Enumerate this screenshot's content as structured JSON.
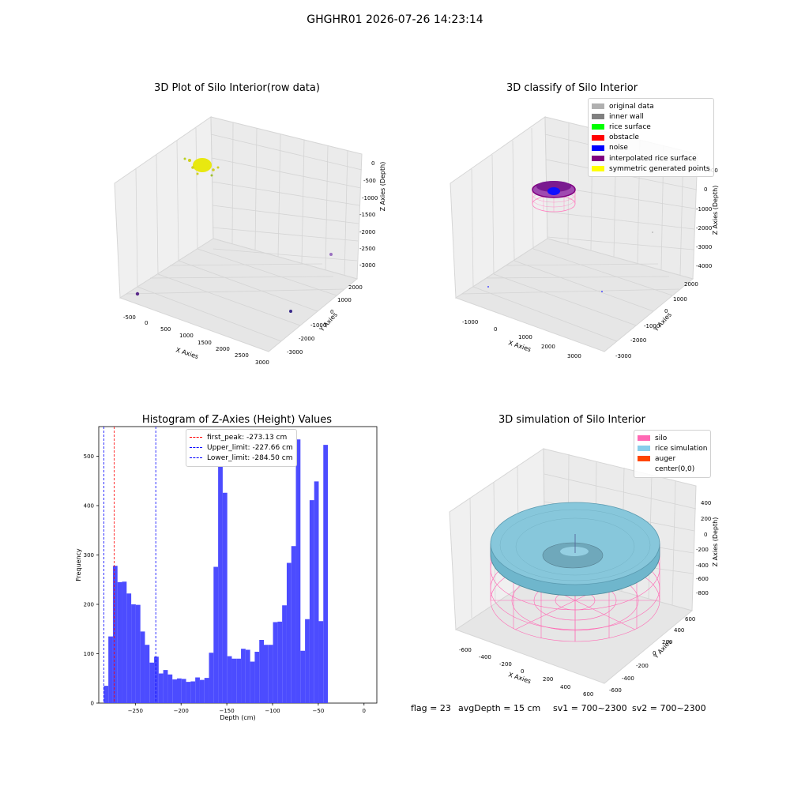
{
  "suptitle": "GHGHR01 2026-07-26 14:23:14",
  "panels": {
    "raw": {
      "title": "3D Plot of Silo Interior(row data)",
      "xlabel": "X Axies",
      "ylabel": "Y Axies",
      "zlabel": "Z Axies (Depth)",
      "xticks": [
        "-500",
        "0",
        "500",
        "1000",
        "1500",
        "2000",
        "2500",
        "3000"
      ],
      "yticks": [
        "2000",
        "1000",
        "0",
        "-1000",
        "-2000",
        "-3000"
      ],
      "zticks": [
        "0",
        "-500",
        "-1000",
        "-1500",
        "-2000",
        "-2500",
        "-3000"
      ]
    },
    "classify": {
      "title": "3D classify of Silo Interior",
      "xlabel": "X Axies",
      "ylabel": "Y Axies",
      "zlabel": "Z Axies (Depth)",
      "xticks": [
        "-1000",
        "0",
        "1000",
        "2000",
        "3000"
      ],
      "yticks": [
        "2000",
        "1000",
        "0",
        "-1000",
        "-2000",
        "-3000"
      ],
      "zticks": [
        "1000",
        "0",
        "-1000",
        "-2000",
        "-3000",
        "-4000"
      ],
      "legend": [
        {
          "label": "original data",
          "color": "#b0b0b0"
        },
        {
          "label": "inner wall",
          "color": "#808080"
        },
        {
          "label": "rice surface",
          "color": "#00ff00"
        },
        {
          "label": "obstacle",
          "color": "#ff0000"
        },
        {
          "label": "noise",
          "color": "#0000ff"
        },
        {
          "label": "interpolated rice surface",
          "color": "#800080"
        },
        {
          "label": "symmetric generated points",
          "color": "#ffff00"
        }
      ]
    },
    "simulation": {
      "title": "3D simulation of Silo Interior",
      "xlabel": "X Axies",
      "ylabel": "Y Axies",
      "zlabel": "Z Axies (Depth)",
      "xticks": [
        "-600",
        "-400",
        "-200",
        "0",
        "200",
        "400",
        "600"
      ],
      "yticks": [
        "600",
        "400",
        "200",
        "0",
        "-200",
        "-400",
        "-600"
      ],
      "zticks": [
        "400",
        "200",
        "0",
        "-200",
        "-400",
        "-600",
        "-800"
      ],
      "legend": [
        {
          "label": "silo",
          "color": "#ff69b4"
        },
        {
          "label": "rice simulation",
          "color": "#87ceeb"
        },
        {
          "label": "auger",
          "color": "#ff4500"
        },
        {
          "label": "center(0,0)",
          "color": ""
        }
      ]
    }
  },
  "chart_data": [
    {
      "type": "bar",
      "title": "Histogram of Z-Axies (Height) Values",
      "xlabel": "Depth (cm)",
      "ylabel": "Frequency",
      "xlim": [
        -290,
        14
      ],
      "ylim": [
        0,
        560
      ],
      "xticks": [
        -250,
        -200,
        -150,
        -100,
        -50,
        0
      ],
      "yticks": [
        0,
        100,
        200,
        300,
        400,
        500
      ],
      "bin_start": -284.5,
      "bin_width": 5.0,
      "color": "#4c4cff",
      "values": [
        35,
        135,
        278,
        245,
        246,
        222,
        200,
        199,
        145,
        118,
        82,
        94,
        60,
        67,
        58,
        48,
        50,
        49,
        43,
        44,
        52,
        47,
        51,
        102,
        276,
        480,
        426,
        95,
        90,
        90,
        110,
        108,
        84,
        104,
        128,
        118,
        118,
        164,
        165,
        198,
        284,
        318,
        534,
        106,
        170,
        411,
        449,
        166,
        523
      ],
      "vlines": [
        {
          "x": -273.13,
          "color": "#ff0000",
          "label": "first_peak: -273.13 cm"
        },
        {
          "x": -227.66,
          "color": "#0000ff",
          "label": "Upper_limit: -227.66 cm"
        },
        {
          "x": -284.5,
          "color": "#0000ff",
          "label": "Lower_limit: -284.50 cm"
        }
      ],
      "legend_position": "upper-center"
    }
  ],
  "footer": {
    "flag": "flag = 23",
    "avg": "avgDepth = 15 cm",
    "sv1": "sv1 = 700~2300",
    "sv2": "sv2 = 700~2300"
  }
}
